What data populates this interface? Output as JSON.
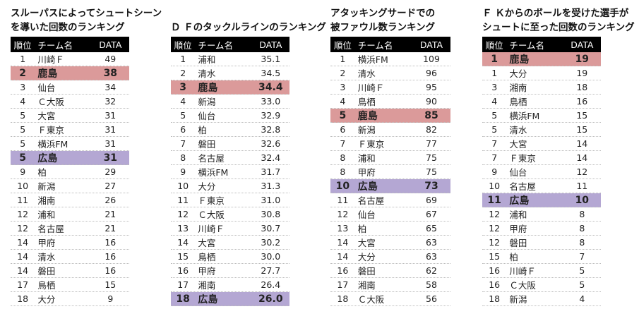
{
  "header": {
    "rank": "順位",
    "team": "チーム名",
    "data": "DATA"
  },
  "panels": [
    {
      "title": [
        "スルーパスによってシュートシーン",
        "を導いた回数のランキング"
      ],
      "rows": [
        {
          "rank": "1",
          "team": "川崎Ｆ",
          "value": "49",
          "hl": ""
        },
        {
          "rank": "2",
          "team": "鹿島",
          "value": "38",
          "hl": "red"
        },
        {
          "rank": "3",
          "team": "仙台",
          "value": "34",
          "hl": ""
        },
        {
          "rank": "4",
          "team": "Ｃ大阪",
          "value": "32",
          "hl": ""
        },
        {
          "rank": "5",
          "team": "大宮",
          "value": "31",
          "hl": ""
        },
        {
          "rank": "5",
          "team": "Ｆ東京",
          "value": "31",
          "hl": ""
        },
        {
          "rank": "5",
          "team": "横浜FM",
          "value": "31",
          "hl": ""
        },
        {
          "rank": "5",
          "team": "広島",
          "value": "31",
          "hl": "purple"
        },
        {
          "rank": "9",
          "team": "柏",
          "value": "29",
          "hl": ""
        },
        {
          "rank": "10",
          "team": "新潟",
          "value": "27",
          "hl": ""
        },
        {
          "rank": "11",
          "team": "湘南",
          "value": "26",
          "hl": ""
        },
        {
          "rank": "12",
          "team": "浦和",
          "value": "21",
          "hl": ""
        },
        {
          "rank": "12",
          "team": "名古屋",
          "value": "21",
          "hl": ""
        },
        {
          "rank": "14",
          "team": "甲府",
          "value": "16",
          "hl": ""
        },
        {
          "rank": "14",
          "team": "清水",
          "value": "16",
          "hl": ""
        },
        {
          "rank": "14",
          "team": "磐田",
          "value": "16",
          "hl": ""
        },
        {
          "rank": "17",
          "team": "鳥栖",
          "value": "15",
          "hl": ""
        },
        {
          "rank": "18",
          "team": "大分",
          "value": "9",
          "hl": ""
        }
      ]
    },
    {
      "title": [
        "Ｄ Ｆのタックルラインのランキング"
      ],
      "rows": [
        {
          "rank": "1",
          "team": "浦和",
          "value": "35.1",
          "hl": ""
        },
        {
          "rank": "2",
          "team": "清水",
          "value": "34.5",
          "hl": ""
        },
        {
          "rank": "3",
          "team": "鹿島",
          "value": "34.4",
          "hl": "red"
        },
        {
          "rank": "4",
          "team": "新潟",
          "value": "33.0",
          "hl": ""
        },
        {
          "rank": "5",
          "team": "仙台",
          "value": "32.9",
          "hl": ""
        },
        {
          "rank": "6",
          "team": "柏",
          "value": "32.8",
          "hl": ""
        },
        {
          "rank": "7",
          "team": "磐田",
          "value": "32.6",
          "hl": ""
        },
        {
          "rank": "8",
          "team": "名古屋",
          "value": "32.4",
          "hl": ""
        },
        {
          "rank": "9",
          "team": "横浜FM",
          "value": "31.7",
          "hl": ""
        },
        {
          "rank": "10",
          "team": "大分",
          "value": "31.3",
          "hl": ""
        },
        {
          "rank": "11",
          "team": "Ｆ東京",
          "value": "31.0",
          "hl": ""
        },
        {
          "rank": "12",
          "team": "Ｃ大阪",
          "value": "30.8",
          "hl": ""
        },
        {
          "rank": "13",
          "team": "川崎Ｆ",
          "value": "30.7",
          "hl": ""
        },
        {
          "rank": "14",
          "team": "大宮",
          "value": "30.2",
          "hl": ""
        },
        {
          "rank": "15",
          "team": "鳥栖",
          "value": "30.0",
          "hl": ""
        },
        {
          "rank": "16",
          "team": "甲府",
          "value": "27.7",
          "hl": ""
        },
        {
          "rank": "17",
          "team": "湘南",
          "value": "26.4",
          "hl": ""
        },
        {
          "rank": "18",
          "team": "広島",
          "value": "26.0",
          "hl": "purple"
        }
      ]
    },
    {
      "title": [
        "アタッキングサードでの",
        "被ファウル数ランキング"
      ],
      "rows": [
        {
          "rank": "1",
          "team": "横浜FM",
          "value": "109",
          "hl": ""
        },
        {
          "rank": "2",
          "team": "清水",
          "value": "96",
          "hl": ""
        },
        {
          "rank": "3",
          "team": "川崎Ｆ",
          "value": "95",
          "hl": ""
        },
        {
          "rank": "4",
          "team": "鳥栖",
          "value": "90",
          "hl": ""
        },
        {
          "rank": "5",
          "team": "鹿島",
          "value": "85",
          "hl": "red"
        },
        {
          "rank": "6",
          "team": "新潟",
          "value": "82",
          "hl": ""
        },
        {
          "rank": "7",
          "team": "Ｆ東京",
          "value": "77",
          "hl": ""
        },
        {
          "rank": "8",
          "team": "浦和",
          "value": "75",
          "hl": ""
        },
        {
          "rank": "8",
          "team": "甲府",
          "value": "75",
          "hl": ""
        },
        {
          "rank": "10",
          "team": "広島",
          "value": "73",
          "hl": "purple"
        },
        {
          "rank": "11",
          "team": "名古屋",
          "value": "69",
          "hl": ""
        },
        {
          "rank": "12",
          "team": "仙台",
          "value": "67",
          "hl": ""
        },
        {
          "rank": "13",
          "team": "柏",
          "value": "65",
          "hl": ""
        },
        {
          "rank": "14",
          "team": "大宮",
          "value": "63",
          "hl": ""
        },
        {
          "rank": "14",
          "team": "大分",
          "value": "63",
          "hl": ""
        },
        {
          "rank": "16",
          "team": "磐田",
          "value": "62",
          "hl": ""
        },
        {
          "rank": "17",
          "team": "湘南",
          "value": "58",
          "hl": ""
        },
        {
          "rank": "18",
          "team": "Ｃ大阪",
          "value": "56",
          "hl": ""
        }
      ]
    },
    {
      "title": [
        "Ｆ Ｋからのボールを受けた選手が",
        "シュートに至った回数のランキング"
      ],
      "rows": [
        {
          "rank": "1",
          "team": "鹿島",
          "value": "19",
          "hl": "red"
        },
        {
          "rank": "1",
          "team": "大分",
          "value": "19",
          "hl": ""
        },
        {
          "rank": "3",
          "team": "湘南",
          "value": "18",
          "hl": ""
        },
        {
          "rank": "4",
          "team": "鳥栖",
          "value": "16",
          "hl": ""
        },
        {
          "rank": "5",
          "team": "横浜FM",
          "value": "15",
          "hl": ""
        },
        {
          "rank": "5",
          "team": "清水",
          "value": "15",
          "hl": ""
        },
        {
          "rank": "7",
          "team": "大宮",
          "value": "14",
          "hl": ""
        },
        {
          "rank": "7",
          "team": "Ｆ東京",
          "value": "14",
          "hl": ""
        },
        {
          "rank": "9",
          "team": "仙台",
          "value": "12",
          "hl": ""
        },
        {
          "rank": "10",
          "team": "名古屋",
          "value": "11",
          "hl": ""
        },
        {
          "rank": "11",
          "team": "広島",
          "value": "10",
          "hl": "purple"
        },
        {
          "rank": "12",
          "team": "浦和",
          "value": "8",
          "hl": ""
        },
        {
          "rank": "12",
          "team": "甲府",
          "value": "8",
          "hl": ""
        },
        {
          "rank": "12",
          "team": "磐田",
          "value": "8",
          "hl": ""
        },
        {
          "rank": "15",
          "team": "柏",
          "value": "7",
          "hl": ""
        },
        {
          "rank": "16",
          "team": "川崎Ｆ",
          "value": "5",
          "hl": ""
        },
        {
          "rank": "16",
          "team": "Ｃ大阪",
          "value": "5",
          "hl": ""
        },
        {
          "rank": "18",
          "team": "新潟",
          "value": "4",
          "hl": ""
        }
      ]
    }
  ]
}
